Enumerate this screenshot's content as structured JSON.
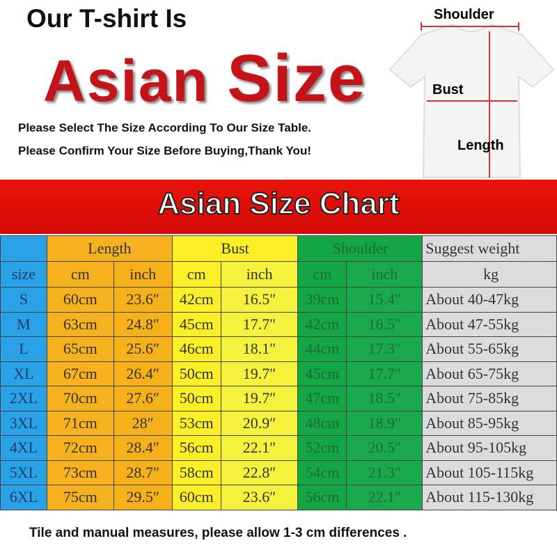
{
  "header": {
    "line1": "Our T-shirt Is",
    "line2a": "Asian ",
    "line2b": "Size",
    "notice1": "Please Select The Size According To Our Size Table.",
    "notice2": "Please Confirm Your Size Before Buying,Thank You!"
  },
  "diagram": {
    "shoulder": "Shoulder",
    "bust": "Bust",
    "length": "Length"
  },
  "banner": {
    "title": "Asian Size Chart"
  },
  "table": {
    "groups": [
      "Length",
      "Bust",
      "Shoulder",
      "Suggest weight"
    ],
    "subheaders": [
      "size",
      "cm",
      "inch",
      "cm",
      "inch",
      "cm",
      "inch",
      "kg"
    ],
    "rows": [
      [
        "S",
        "60cm",
        "23.6″",
        "42cm",
        "16.5″",
        "39cm",
        "15.4″",
        "About 40-47kg"
      ],
      [
        "M",
        "63cm",
        "24.8″",
        "45cm",
        "17.7″",
        "42cm",
        "16.5″",
        "About 47-55kg"
      ],
      [
        "L",
        "65cm",
        "25.6″",
        "46cm",
        "18.1″",
        "44cm",
        "17.3″",
        "About 55-65kg"
      ],
      [
        "XL",
        "67cm",
        "26.4″",
        "50cm",
        "19.7″",
        "45cm",
        "17.7″",
        "About 65-75kg"
      ],
      [
        "2XL",
        "70cm",
        "27.6″",
        "50cm",
        "19.7″",
        "47cm",
        "18.5″",
        "About 75-85kg"
      ],
      [
        "3XL",
        "71cm",
        "28″",
        "53cm",
        "20.9″",
        "48cm",
        "18.9″",
        "About 85-95kg"
      ],
      [
        "4XL",
        "72cm",
        "28.4″",
        "56cm",
        "22.1″",
        "52cm",
        "20.5″",
        "About 95-105kg"
      ],
      [
        "5XL",
        "73cm",
        "28.7″",
        "58cm",
        "22.8″",
        "54cm",
        "21.3″",
        "About 105-115kg"
      ],
      [
        "6XL",
        "75cm",
        "29.5″",
        "60cm",
        "23.6″",
        "56cm",
        "22.1″",
        "About 115-130kg"
      ]
    ]
  },
  "footer": {
    "note": "Tile and manual measures, please allow 1-3 cm differences ."
  },
  "colors": {
    "size": "#2aa2e8",
    "length": "#f6b21e",
    "bust": "#fbef25",
    "shoulder": "#14a545",
    "weight": "#dcdcdc",
    "banner": "#e8140c",
    "title_red": "#c4141a"
  }
}
